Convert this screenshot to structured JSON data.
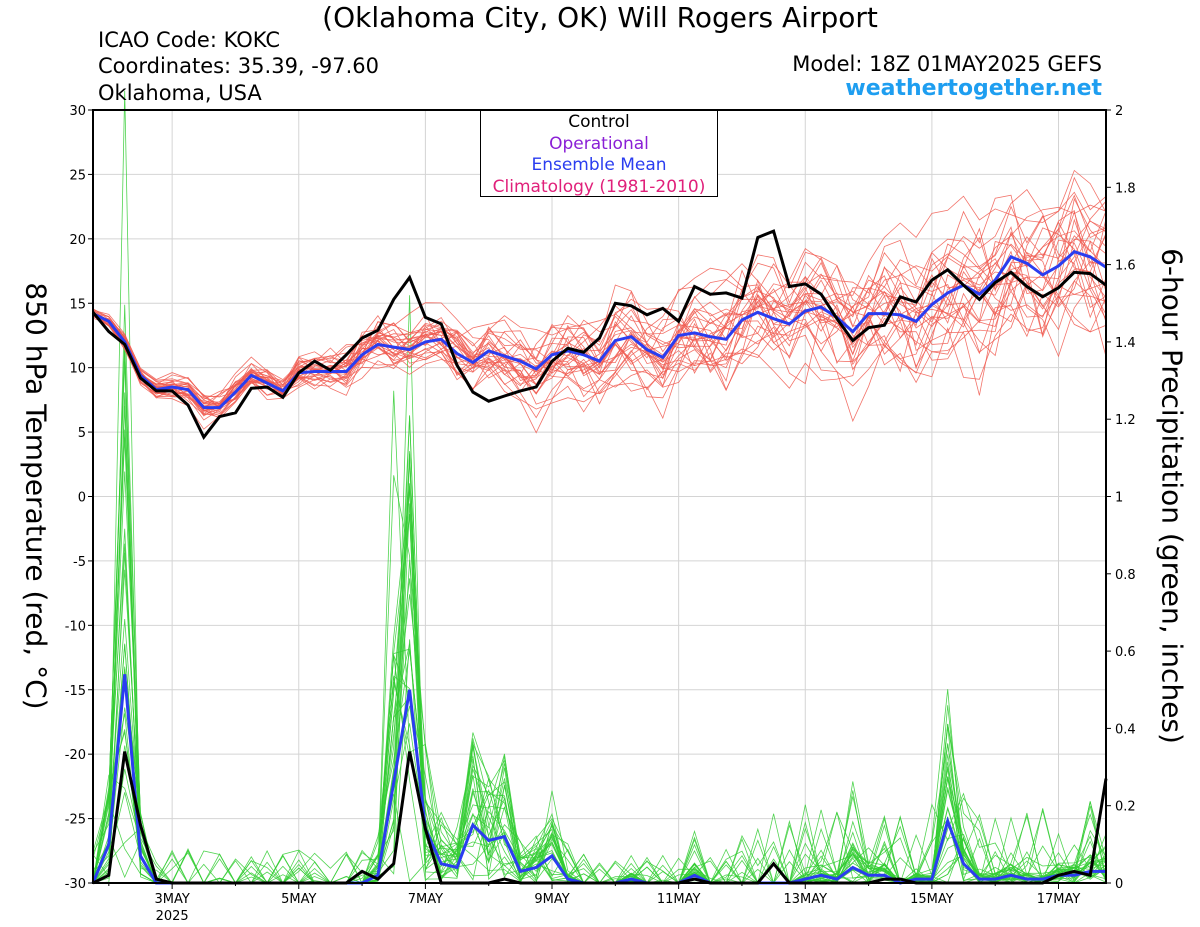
{
  "header": {
    "title": "(Oklahoma City, OK) Will Rogers Airport",
    "icao": "ICAO Code: KOKC",
    "coordinates": "Coordinates: 35.39, -97.60",
    "region": "Oklahoma, USA",
    "model": "Model: 18Z 01MAY2025 GEFS",
    "site": "weathertogether.net"
  },
  "chart_data": {
    "type": "line",
    "ylabel_left": "850 hPa Temperature (red, °C)",
    "ylabel_right": "6-hour Precipitation (green, inches)",
    "ylim_left": [
      -30,
      30
    ],
    "ylim_right": [
      0,
      2
    ],
    "yticks_left": [
      -30,
      -25,
      -20,
      -15,
      -10,
      -5,
      0,
      5,
      10,
      15,
      20,
      25,
      30
    ],
    "yticks_right": [
      0,
      0.2,
      0.4,
      0.6,
      0.8,
      1,
      1.2,
      1.4,
      1.6,
      1.8,
      2
    ],
    "xlim_days": [
      1.75,
      17.75
    ],
    "x_ticks": [
      {
        "day": 3,
        "label": "3MAY",
        "sub": "2025"
      },
      {
        "day": 5,
        "label": "5MAY"
      },
      {
        "day": 7,
        "label": "7MAY"
      },
      {
        "day": 9,
        "label": "9MAY"
      },
      {
        "day": 11,
        "label": "11MAY"
      },
      {
        "day": 13,
        "label": "13MAY"
      },
      {
        "day": 15,
        "label": "15MAY"
      },
      {
        "day": 17,
        "label": "17MAY"
      }
    ],
    "grid": true,
    "legend": [
      "Control",
      "Operational",
      "Ensemble Mean",
      "Climatology (1981-2010)"
    ],
    "colors": {
      "control": "#000000",
      "operational": "#8a1fd6",
      "mean": "#2a3df0",
      "climatology": "#e0207a",
      "members_temp": "#f05a50",
      "members_precip": "#33cc33",
      "site": "#1e9ef0"
    },
    "time_step_days": 0.25,
    "start_day": 1.75,
    "temperature": {
      "ensemble_mean": [
        14.2,
        13.6,
        12.0,
        9.4,
        8.3,
        8.5,
        8.3,
        6.9,
        6.9,
        8.1,
        9.4,
        8.8,
        8.2,
        9.6,
        9.7,
        9.7,
        9.7,
        11.0,
        11.8,
        11.6,
        11.4,
        12.0,
        12.2,
        11.1,
        10.4,
        11.3,
        10.9,
        10.5,
        9.9,
        11.0,
        11.3,
        11.0,
        10.5,
        12.1,
        12.4,
        11.4,
        10.8,
        12.5,
        12.7,
        12.4,
        12.2,
        13.7,
        14.3,
        13.8,
        13.4,
        14.4,
        14.7,
        13.9,
        12.8,
        14.2,
        14.2,
        14.1,
        13.6,
        14.9,
        15.8,
        16.4,
        15.7,
        16.8,
        18.6,
        18.1,
        17.2,
        17.9,
        19.0,
        18.6,
        17.8
      ],
      "control": [
        14.3,
        12.8,
        11.8,
        9.2,
        8.2,
        8.2,
        7.1,
        4.6,
        6.2,
        6.5,
        8.4,
        8.5,
        7.7,
        9.6,
        10.5,
        9.8,
        11.0,
        12.3,
        12.9,
        15.3,
        17.0,
        13.9,
        13.4,
        10.2,
        8.1,
        7.4,
        7.8,
        8.2,
        8.5,
        10.5,
        11.5,
        11.2,
        12.3,
        15.0,
        14.8,
        14.1,
        14.6,
        13.6,
        16.3,
        15.7,
        15.8,
        15.4,
        20.1,
        20.6,
        16.3,
        16.5,
        15.7,
        13.8,
        12.1,
        13.1,
        13.3,
        15.5,
        15.1,
        16.8,
        17.6,
        16.4,
        15.3,
        16.6,
        17.4,
        16.3,
        15.5,
        16.2,
        17.4,
        17.3,
        16.4
      ]
    },
    "precipitation": {
      "ensemble_mean": [
        0,
        0.1,
        0.54,
        0.07,
        0,
        0,
        0,
        0,
        0,
        0,
        0,
        0,
        0,
        0,
        0,
        0,
        0,
        0,
        0.02,
        0.26,
        0.5,
        0.14,
        0.05,
        0.04,
        0.15,
        0.11,
        0.12,
        0.03,
        0.04,
        0.07,
        0.01,
        0,
        0,
        0,
        0.01,
        0,
        0,
        0,
        0.02,
        0,
        0,
        0,
        0,
        0,
        0,
        0.01,
        0.02,
        0.01,
        0.04,
        0.02,
        0.02,
        0,
        0.01,
        0.01,
        0.16,
        0.05,
        0.01,
        0.01,
        0.02,
        0.01,
        0.01,
        0.02,
        0.02,
        0.03,
        0.03
      ],
      "control": [
        0,
        0.02,
        0.34,
        0.15,
        0.01,
        0,
        0,
        0,
        0,
        0,
        0,
        0,
        0,
        0,
        0,
        0,
        0,
        0.03,
        0.01,
        0.05,
        0.34,
        0.14,
        0,
        0,
        0,
        0,
        0.01,
        0,
        0,
        0,
        0,
        0,
        0,
        0,
        0,
        0,
        0,
        0,
        0.01,
        0,
        0,
        0,
        0,
        0.05,
        0,
        0,
        0,
        0,
        0,
        0,
        0.01,
        0.01,
        0,
        0,
        0,
        0,
        0,
        0,
        0,
        0,
        0,
        0.02,
        0.03,
        0.02,
        0.27
      ]
    }
  }
}
